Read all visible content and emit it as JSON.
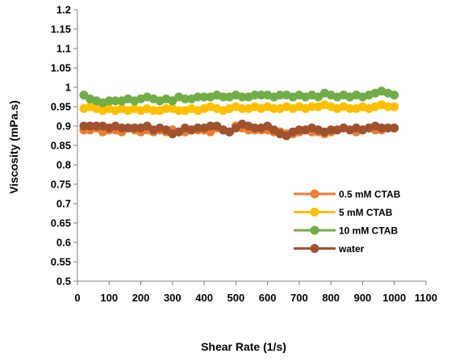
{
  "chart_data": {
    "type": "line",
    "title": "",
    "xlabel": "Shear Rate (1/s)",
    "ylabel": "Viscosity (mPa.s)",
    "xlim": [
      0,
      1100
    ],
    "ylim": [
      0.5,
      1.2
    ],
    "xticks": [
      "0",
      "100",
      "200",
      "300",
      "400",
      "500",
      "600",
      "700",
      "800",
      "900",
      "1000",
      "1100"
    ],
    "yticks": [
      "0.5",
      "0.55",
      "0.6",
      "0.65",
      "0.7",
      "0.75",
      "0.8",
      "0.85",
      "0.9",
      "0.95",
      "1",
      "1.05",
      "1.1",
      "1.15",
      "1.2"
    ],
    "grid": false,
    "legend": "lower-right",
    "series": [
      {
        "name": "0.5 mM CTAB",
        "color": "#ED7D31",
        "x": [
          20,
          40,
          60,
          80,
          100,
          120,
          140,
          160,
          180,
          200,
          220,
          240,
          260,
          280,
          300,
          320,
          340,
          360,
          380,
          400,
          420,
          440,
          460,
          480,
          500,
          520,
          540,
          560,
          580,
          600,
          620,
          640,
          660,
          680,
          700,
          720,
          740,
          760,
          780,
          800,
          820,
          840,
          860,
          880,
          900,
          920,
          940,
          960,
          980,
          1000
        ],
        "values": [
          0.89,
          0.89,
          0.895,
          0.885,
          0.89,
          0.89,
          0.885,
          0.895,
          0.89,
          0.885,
          0.89,
          0.885,
          0.89,
          0.885,
          0.89,
          0.885,
          0.885,
          0.89,
          0.89,
          0.89,
          0.885,
          0.895,
          0.89,
          0.885,
          0.9,
          0.895,
          0.89,
          0.89,
          0.89,
          0.89,
          0.885,
          0.885,
          0.88,
          0.88,
          0.885,
          0.89,
          0.885,
          0.885,
          0.88,
          0.885,
          0.89,
          0.895,
          0.89,
          0.885,
          0.89,
          0.895,
          0.89,
          0.89,
          0.895,
          0.895
        ]
      },
      {
        "name": "5 mM CTAB",
        "color": "#FFC000",
        "x": [
          20,
          40,
          60,
          80,
          100,
          120,
          140,
          160,
          180,
          200,
          220,
          240,
          260,
          280,
          300,
          320,
          340,
          360,
          380,
          400,
          420,
          440,
          460,
          480,
          500,
          520,
          540,
          560,
          580,
          600,
          620,
          640,
          660,
          680,
          700,
          720,
          740,
          760,
          780,
          800,
          820,
          840,
          860,
          880,
          900,
          920,
          940,
          960,
          980,
          1000
        ],
        "values": [
          0.945,
          0.95,
          0.945,
          0.94,
          0.945,
          0.94,
          0.945,
          0.94,
          0.945,
          0.94,
          0.945,
          0.94,
          0.94,
          0.945,
          0.945,
          0.94,
          0.94,
          0.945,
          0.94,
          0.945,
          0.95,
          0.945,
          0.94,
          0.945,
          0.95,
          0.945,
          0.945,
          0.95,
          0.945,
          0.95,
          0.945,
          0.945,
          0.95,
          0.945,
          0.95,
          0.945,
          0.95,
          0.95,
          0.955,
          0.95,
          0.945,
          0.95,
          0.945,
          0.945,
          0.95,
          0.945,
          0.95,
          0.955,
          0.95,
          0.95
        ]
      },
      {
        "name": "10 mM CTAB",
        "color": "#70AD47",
        "x": [
          20,
          40,
          60,
          80,
          100,
          120,
          140,
          160,
          180,
          200,
          220,
          240,
          260,
          280,
          300,
          320,
          340,
          360,
          380,
          400,
          420,
          440,
          460,
          480,
          500,
          520,
          540,
          560,
          580,
          600,
          620,
          640,
          660,
          680,
          700,
          720,
          740,
          760,
          780,
          800,
          820,
          840,
          860,
          880,
          900,
          920,
          940,
          960,
          980,
          1000
        ],
        "values": [
          0.98,
          0.97,
          0.965,
          0.96,
          0.965,
          0.965,
          0.965,
          0.97,
          0.965,
          0.97,
          0.975,
          0.97,
          0.965,
          0.97,
          0.965,
          0.975,
          0.97,
          0.97,
          0.975,
          0.975,
          0.975,
          0.98,
          0.975,
          0.975,
          0.98,
          0.975,
          0.975,
          0.98,
          0.98,
          0.98,
          0.975,
          0.98,
          0.98,
          0.975,
          0.98,
          0.975,
          0.98,
          0.975,
          0.985,
          0.98,
          0.975,
          0.98,
          0.975,
          0.98,
          0.975,
          0.98,
          0.985,
          0.99,
          0.985,
          0.98
        ]
      },
      {
        "name": "water",
        "color": "#A0522D",
        "x": [
          20,
          40,
          60,
          80,
          100,
          120,
          140,
          160,
          180,
          200,
          220,
          240,
          260,
          280,
          300,
          320,
          340,
          360,
          380,
          400,
          420,
          440,
          460,
          480,
          500,
          520,
          540,
          560,
          580,
          600,
          620,
          640,
          660,
          680,
          700,
          720,
          740,
          760,
          780,
          800,
          820,
          840,
          860,
          880,
          900,
          920,
          940,
          960,
          980,
          1000
        ],
        "values": [
          0.9,
          0.9,
          0.9,
          0.9,
          0.895,
          0.9,
          0.895,
          0.895,
          0.895,
          0.895,
          0.9,
          0.89,
          0.895,
          0.89,
          0.88,
          0.885,
          0.895,
          0.89,
          0.895,
          0.895,
          0.9,
          0.9,
          0.89,
          0.885,
          0.895,
          0.905,
          0.9,
          0.895,
          0.895,
          0.9,
          0.89,
          0.88,
          0.875,
          0.885,
          0.89,
          0.89,
          0.895,
          0.89,
          0.885,
          0.89,
          0.89,
          0.895,
          0.89,
          0.895,
          0.89,
          0.895,
          0.9,
          0.895,
          0.895,
          0.895
        ]
      }
    ]
  }
}
